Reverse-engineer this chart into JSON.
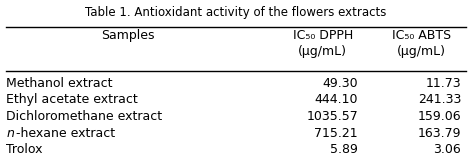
{
  "title": "Table 1. Antioxidant activity of the flowers extracts",
  "col_headers": [
    "Samples",
    "IC₅₀ DPPH\n(µg/mL)",
    "IC₅₀ ABTS\n(µg/mL)"
  ],
  "rows": [
    [
      "Methanol extract",
      "49.30",
      "11.73"
    ],
    [
      "Ethyl acetate extract",
      "444.10",
      "241.33"
    ],
    [
      "Dichloromethane extract",
      "1035.57",
      "159.06"
    ],
    [
      "n-hexane extract",
      "715.21",
      "163.79"
    ],
    [
      "Trolox",
      "5.89",
      "3.06"
    ]
  ],
  "italic_rows": [
    3
  ],
  "header_bg": "#d9d9d9",
  "bg_color": "#ffffff",
  "font_size": 9,
  "title_font_size": 8.5
}
